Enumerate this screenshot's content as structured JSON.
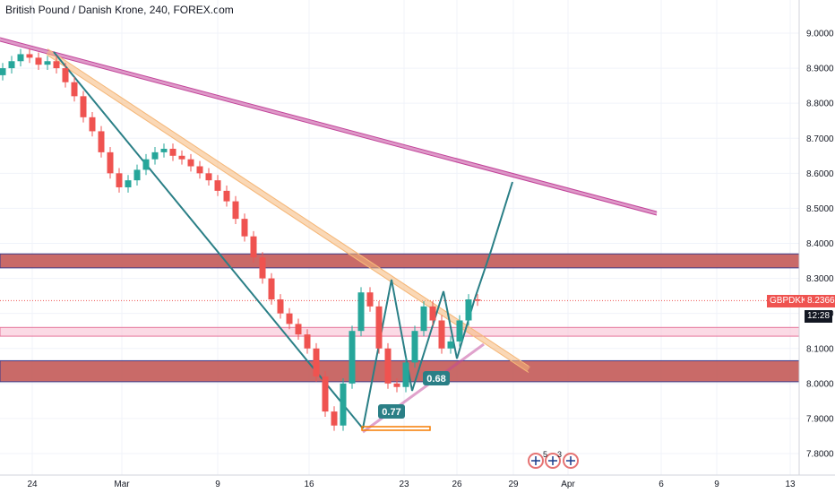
{
  "header": {
    "title": "British Pound / Danish Krone, 240, FOREX.com"
  },
  "price_tag": {
    "symbol": "GBPDKK",
    "price": "8.2366",
    "countdown": "12:28"
  },
  "annotations": {
    "label_a": "0.77",
    "label_b": "0.68",
    "event_count_1": "5",
    "event_count_2": "3"
  },
  "colors": {
    "up": "#26a69a",
    "down": "#ef5350",
    "zone": "#c0504d",
    "pink_zone": "#f8bbd0",
    "trendline": "#f5b87a",
    "magenta": "#c2459a",
    "teal": "#2a7f86",
    "price": "#ef5350"
  },
  "chart_data": {
    "type": "candlestick",
    "title": "British Pound / Danish Krone, 240, FOREX.com",
    "ylim": [
      7.75,
      9.1
    ],
    "y_ticks": [
      "9.0000",
      "8.9000",
      "8.8000",
      "8.7000",
      "8.6000",
      "8.5000",
      "8.4000",
      "8.3000",
      "8.2000",
      "8.1000",
      "8.0000",
      "7.9000",
      "7.8000"
    ],
    "x_ticks": [
      "24",
      "Mar",
      "9",
      "16",
      "23",
      "26",
      "29",
      "Apr",
      "6",
      "9",
      "13"
    ],
    "last_price": 8.2366,
    "zones": [
      {
        "from": 8.33,
        "to": 8.37,
        "color": "#c0504d"
      },
      {
        "from": 8.135,
        "to": 8.16,
        "color": "#f8bbd0"
      },
      {
        "from": 8.005,
        "to": 8.065,
        "color": "#c0504d"
      }
    ],
    "close_series": [
      8.9,
      8.92,
      8.94,
      8.93,
      8.91,
      8.92,
      8.9,
      8.86,
      8.82,
      8.76,
      8.72,
      8.66,
      8.6,
      8.56,
      8.58,
      8.61,
      8.64,
      8.66,
      8.67,
      8.65,
      8.64,
      8.62,
      8.6,
      8.58,
      8.55,
      8.52,
      8.47,
      8.42,
      8.36,
      8.3,
      8.24,
      8.2,
      8.17,
      8.14,
      8.1,
      8.02,
      7.92,
      7.88,
      8.0,
      8.15,
      8.26,
      8.22,
      8.1,
      8.0,
      7.99,
      8.06,
      8.15,
      8.22,
      8.18,
      8.1,
      8.12,
      8.18,
      8.24,
      8.2366
    ]
  }
}
